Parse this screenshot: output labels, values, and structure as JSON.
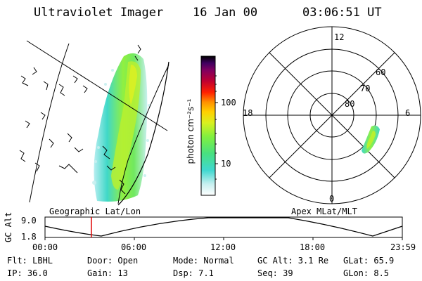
{
  "header": {
    "instrument": "Ultraviolet Imager",
    "date": "16 Jan 00",
    "time": "03:06:51 UT"
  },
  "colorbar": {
    "unit_label": "photon cm⁻²s⁻¹",
    "ticks": [
      "100",
      "10"
    ]
  },
  "polar_plot": {
    "mlt_labels": [
      "12",
      "18",
      "6",
      "0"
    ],
    "lat_labels": [
      "60",
      "70",
      "80"
    ]
  },
  "projection_labels": {
    "left": "Geographic Lat/Lon",
    "right": "Apex MLat/MLT"
  },
  "timeline": {
    "ylabel": "GC Alt",
    "yticks": [
      "9.0",
      "1.8"
    ],
    "xticks": [
      "00:00",
      "06:00",
      "12:00",
      "18:00",
      "23:59"
    ],
    "current_marker_hours": 3.11
  },
  "info": {
    "filter": "Flt: LBHL",
    "door": "Door: Open",
    "mode": "Mode: Normal",
    "gc_alt": "GC Alt: 3.1 Re",
    "glat": "GLat:  65.9",
    "ip": "IP: 36.0",
    "gain": "Gain: 13",
    "dsp": "Dsp:    7.1",
    "seq": "Seq: 39",
    "glon": "GLon:   8.5"
  },
  "colors": {
    "scale": [
      "#ffffff",
      "#c8f0f0",
      "#40d8d0",
      "#48e080",
      "#80f040",
      "#d8f020",
      "#ffd000",
      "#ff9000",
      "#ff2000",
      "#c00030",
      "#800060",
      "#400060",
      "#000000"
    ],
    "marker": "#e00000"
  }
}
